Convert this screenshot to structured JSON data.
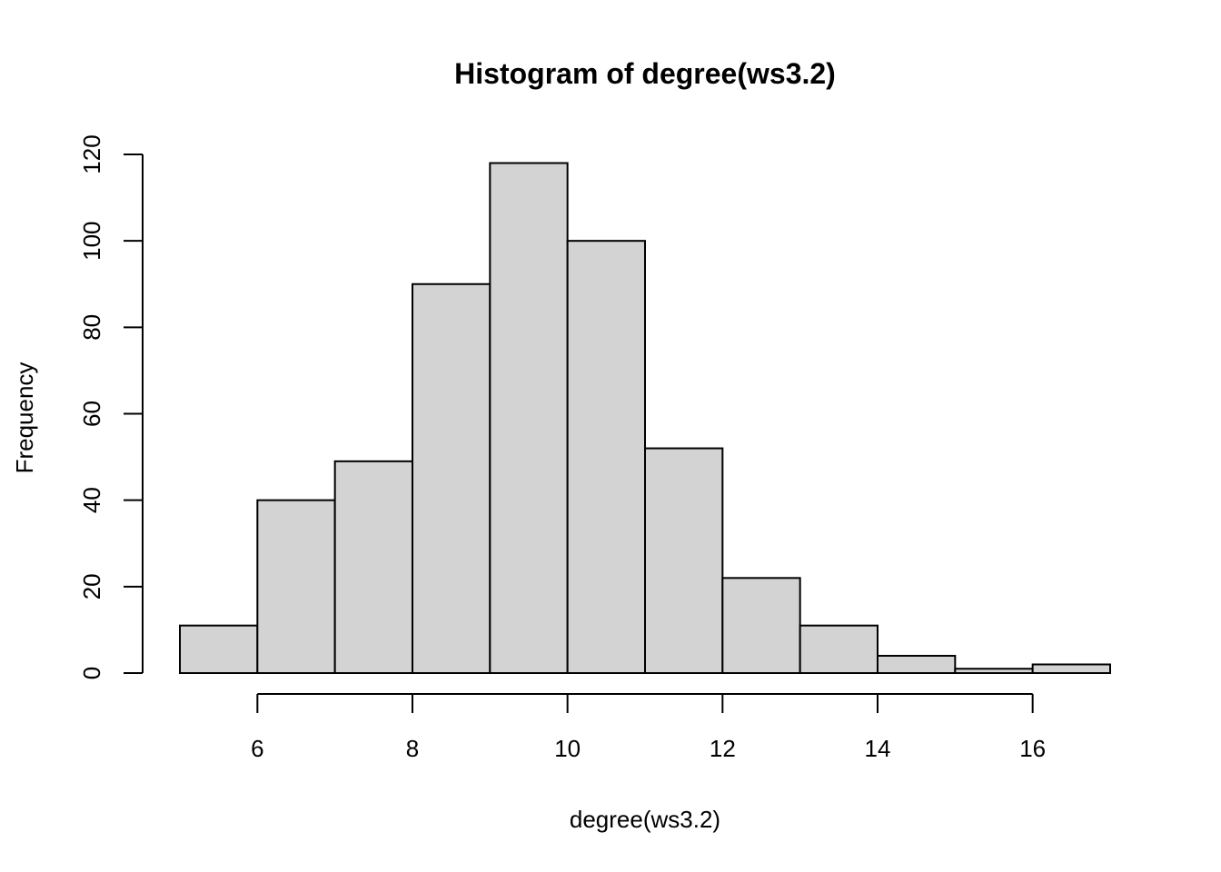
{
  "chart_data": {
    "type": "bar",
    "title": "Histogram of degree(ws3.2)",
    "xlabel": "degree(ws3.2)",
    "ylabel": "Frequency",
    "bins": [
      {
        "start": 5,
        "end": 6,
        "value": 11
      },
      {
        "start": 6,
        "end": 7,
        "value": 40
      },
      {
        "start": 7,
        "end": 8,
        "value": 49
      },
      {
        "start": 8,
        "end": 9,
        "value": 90
      },
      {
        "start": 9,
        "end": 10,
        "value": 118
      },
      {
        "start": 10,
        "end": 11,
        "value": 100
      },
      {
        "start": 11,
        "end": 12,
        "value": 52
      },
      {
        "start": 12,
        "end": 13,
        "value": 22
      },
      {
        "start": 13,
        "end": 14,
        "value": 11
      },
      {
        "start": 14,
        "end": 15,
        "value": 4
      },
      {
        "start": 15,
        "end": 16,
        "value": 1
      },
      {
        "start": 16,
        "end": 17,
        "value": 2
      }
    ],
    "xlim": [
      5,
      17
    ],
    "ylim": [
      0,
      120
    ],
    "x_ticks": [
      "6",
      "8",
      "10",
      "12",
      "14",
      "16"
    ],
    "y_ticks": [
      "0",
      "20",
      "40",
      "60",
      "80",
      "100",
      "120"
    ],
    "bar_color": "#d3d3d3",
    "grid": false
  }
}
